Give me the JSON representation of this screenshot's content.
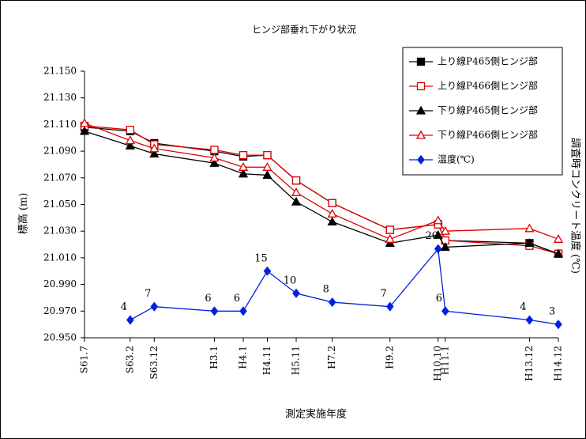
{
  "chart_data": {
    "type": "line",
    "title": "ヒンジ部垂れ下がり状況",
    "x_label": "測定実施年度",
    "y_label": "標高 (m)",
    "y2_label": "調査時コンクリート温度 (℃)",
    "categories": [
      "S61.7",
      "S63.2",
      "S63.12",
      "H3.1",
      "H4.1",
      "H4.11",
      "H5.11",
      "H7.2",
      "H9.2",
      "H10.10",
      "H11.1",
      "H13.12",
      "H14.12"
    ],
    "ylim": [
      20.95,
      21.15
    ],
    "yticks": [
      {
        "value": 20.95,
        "label": "20.950"
      },
      {
        "value": 20.97,
        "label": "20.970"
      },
      {
        "value": 20.99,
        "label": "20.990"
      },
      {
        "value": 21.01,
        "label": "21.010"
      },
      {
        "value": 21.03,
        "label": "21.030"
      },
      {
        "value": 21.05,
        "label": "21.050"
      },
      {
        "value": 21.07,
        "label": "21.070"
      },
      {
        "value": 21.09,
        "label": "21.090"
      },
      {
        "value": 21.11,
        "label": "21.110"
      },
      {
        "value": 21.13,
        "label": "21.130"
      },
      {
        "value": 21.15,
        "label": "21.150"
      }
    ],
    "y2lim": [
      0,
      60
    ],
    "legend": "top-right",
    "series": [
      {
        "name": "上り線P465側ヒンジ部",
        "color": "#000000",
        "marker": "square",
        "marker_fill": true,
        "values": [
          21.108,
          21.105,
          21.096,
          21.09,
          21.086,
          21.087,
          21.068,
          21.051,
          21.031,
          21.035,
          21.023,
          21.021,
          21.013
        ]
      },
      {
        "name": "上り線P466側ヒンジ部",
        "color": "#e00000",
        "marker": "square",
        "marker_fill": false,
        "values": [
          21.109,
          21.106,
          21.095,
          21.091,
          21.087,
          21.087,
          21.068,
          21.051,
          21.031,
          21.035,
          21.023,
          21.019,
          21.013
        ]
      },
      {
        "name": "下り線P465側ヒンジ部",
        "color": "#000000",
        "marker": "triangle",
        "marker_fill": true,
        "values": [
          21.105,
          21.094,
          21.088,
          21.081,
          21.073,
          21.072,
          21.052,
          21.037,
          21.021,
          21.027,
          21.018,
          21.021,
          21.013
        ]
      },
      {
        "name": "下り線P466側ヒンジ部",
        "color": "#e00000",
        "marker": "triangle",
        "marker_fill": false,
        "values": [
          21.111,
          21.098,
          21.092,
          21.085,
          21.078,
          21.078,
          21.059,
          21.043,
          21.024,
          21.038,
          21.03,
          21.032,
          21.024
        ]
      },
      {
        "name": "温度(℃)",
        "color": "#0020e0",
        "marker": "diamond",
        "marker_fill": true,
        "axis": "y2",
        "data_labels": true,
        "values": [
          null,
          4,
          7,
          6,
          6,
          15,
          10,
          8,
          7,
          20,
          6,
          4,
          3
        ]
      }
    ]
  }
}
